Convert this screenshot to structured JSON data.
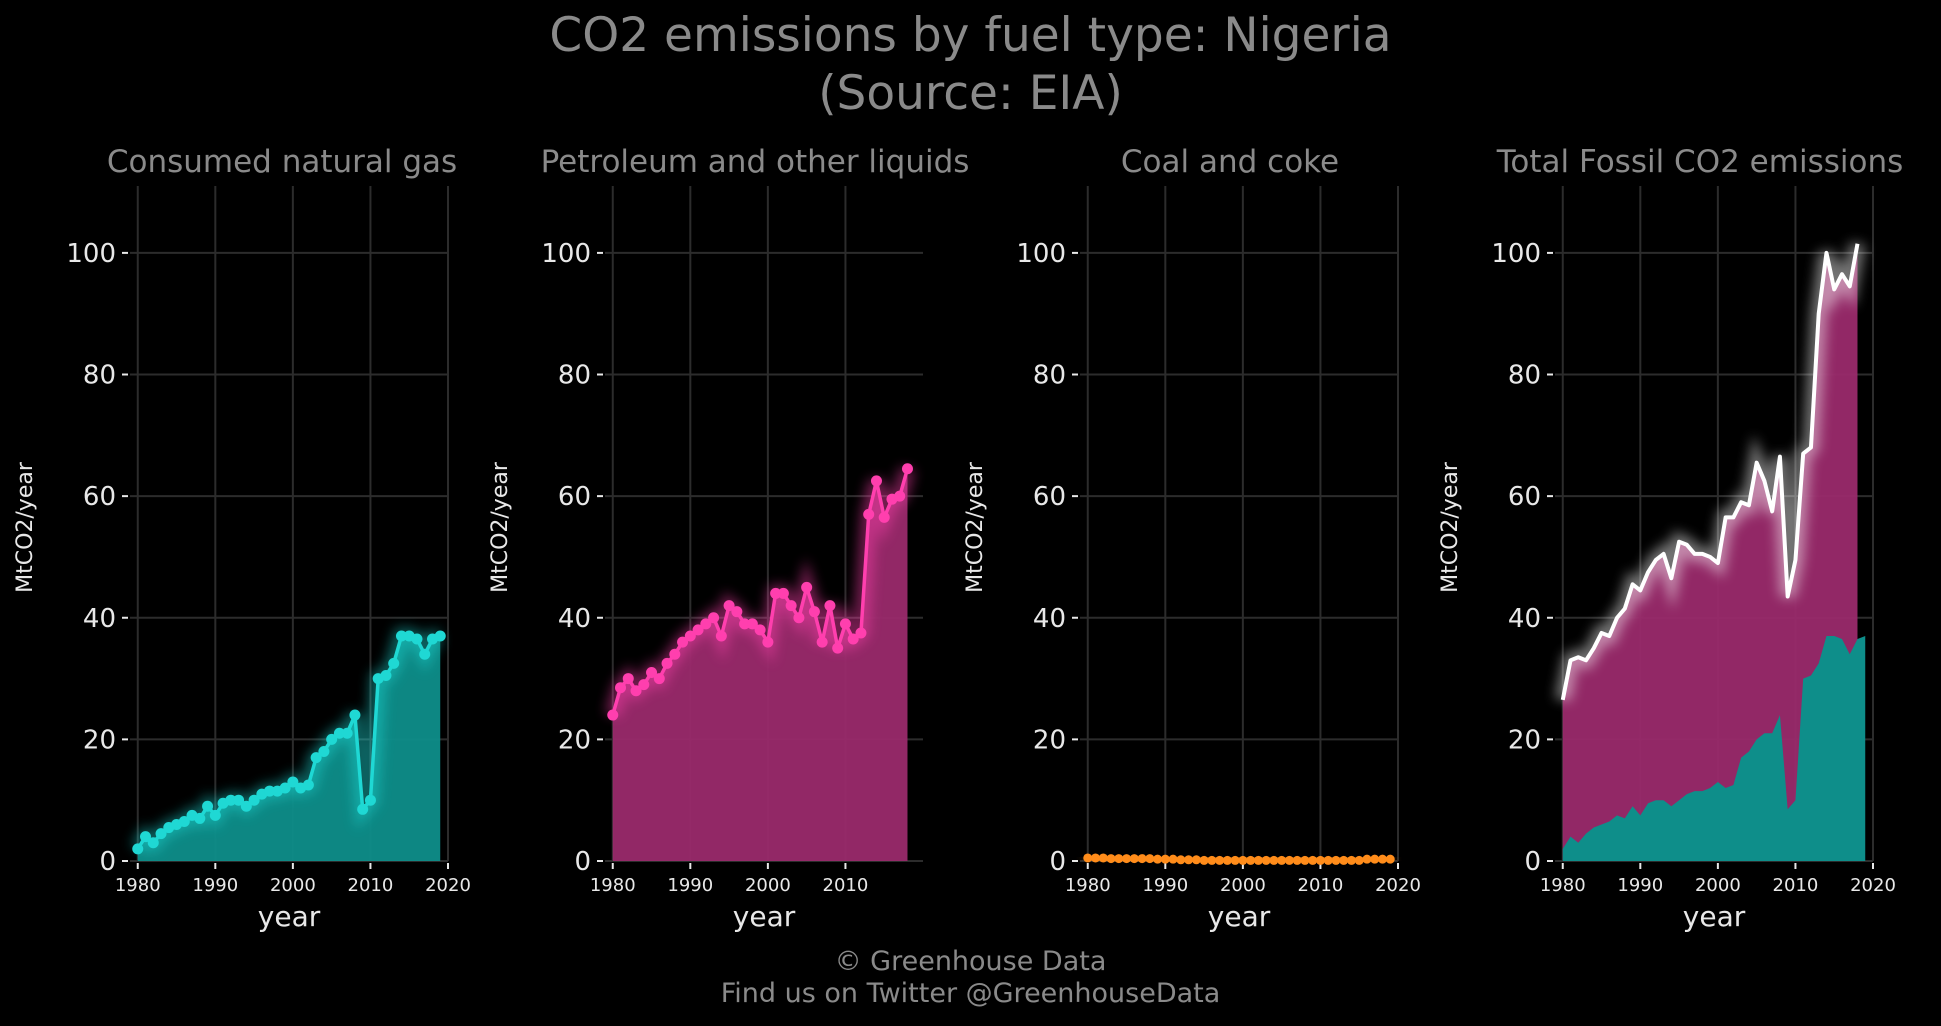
{
  "title_line1": "CO2 emissions by fuel type: Nigeria",
  "title_line2": "(Source: EIA)",
  "footer_line1": "© Greenhouse Data",
  "footer_line2": "Find us on Twitter @GreenhouseData",
  "colors": {
    "background": "#000000",
    "grid": "#2c2c2c",
    "gas_line": "#1fd8d4",
    "gas_fill": "#0e8e8a",
    "petroleum_line": "#ff3fae",
    "petroleum_fill": "#9a2a6c",
    "coal_line": "#ff8c1a",
    "total_line": "#ffffff"
  },
  "chart_data": [
    {
      "type": "area",
      "title": "Consumed natural gas",
      "xlabel": "year",
      "ylabel": "MtCO2/year",
      "xlim": [
        1979,
        2020
      ],
      "ylim": [
        0,
        111
      ],
      "xticks": [
        1980,
        1990,
        2000,
        2010,
        2020
      ],
      "yticks": [
        0,
        20,
        40,
        60,
        80,
        100
      ],
      "grid": true,
      "series": [
        {
          "x": [
            1980,
            1981,
            1982,
            1983,
            1984,
            1985,
            1986,
            1987,
            1988,
            1989,
            1990,
            1991,
            1992,
            1993,
            1994,
            1995,
            1996,
            1997,
            1998,
            1999,
            2000,
            2001,
            2002,
            2003,
            2004,
            2005,
            2006,
            2007,
            2008,
            2009,
            2010,
            2011,
            2012,
            2013,
            2014,
            2015,
            2016,
            2017,
            2018,
            2019
          ],
          "values": [
            2,
            4,
            3,
            4.5,
            5.5,
            6,
            6.5,
            7.5,
            7,
            9,
            7.5,
            9.5,
            10,
            10,
            9,
            10,
            11,
            11.5,
            11.5,
            12,
            13,
            12,
            12.5,
            17,
            18,
            20,
            21,
            21,
            24,
            8.5,
            10,
            30,
            30.5,
            32.5,
            37,
            37,
            36.5,
            34,
            36.5,
            37
          ]
        }
      ]
    },
    {
      "type": "area",
      "title": "Petroleum and other liquids",
      "xlabel": "year",
      "ylabel": "MtCO2/year",
      "xlim": [
        1979,
        2020
      ],
      "ylim": [
        0,
        111
      ],
      "xticks": [
        1980,
        1990,
        2000,
        2010
      ],
      "yticks": [
        0,
        20,
        40,
        60,
        80,
        100
      ],
      "grid": true,
      "series": [
        {
          "x": [
            1980,
            1981,
            1982,
            1983,
            1984,
            1985,
            1986,
            1987,
            1988,
            1989,
            1990,
            1991,
            1992,
            1993,
            1994,
            1995,
            1996,
            1997,
            1998,
            1999,
            2000,
            2001,
            2002,
            2003,
            2004,
            2005,
            2006,
            2007,
            2008,
            2009,
            2010,
            2011,
            2012,
            2013,
            2014,
            2015,
            2016,
            2017,
            2018
          ],
          "values": [
            24,
            28.5,
            30,
            28,
            29,
            31,
            30,
            32.5,
            34,
            36,
            37,
            38,
            39,
            40,
            37,
            42,
            41,
            39,
            39,
            38,
            36,
            44,
            44,
            42,
            40,
            45,
            41,
            36,
            42,
            35,
            39,
            36.5,
            37.5,
            57,
            62.5,
            56.5,
            59.5,
            60,
            64.5
          ]
        }
      ]
    },
    {
      "type": "area",
      "title": "Coal and coke",
      "xlabel": "year",
      "ylabel": "MtCO2/year",
      "xlim": [
        1979,
        2020
      ],
      "ylim": [
        0,
        111
      ],
      "xticks": [
        1980,
        1990,
        2000,
        2010,
        2020
      ],
      "yticks": [
        0,
        20,
        40,
        60,
        80,
        100
      ],
      "grid": true,
      "series": [
        {
          "x": [
            1980,
            1981,
            1982,
            1983,
            1984,
            1985,
            1986,
            1987,
            1988,
            1989,
            1990,
            1991,
            1992,
            1993,
            1994,
            1995,
            1996,
            1997,
            1998,
            1999,
            2000,
            2001,
            2002,
            2003,
            2004,
            2005,
            2006,
            2007,
            2008,
            2009,
            2010,
            2011,
            2012,
            2013,
            2014,
            2015,
            2016,
            2017,
            2018,
            2019
          ],
          "values": [
            0.5,
            0.5,
            0.5,
            0.4,
            0.4,
            0.4,
            0.4,
            0.4,
            0.4,
            0.3,
            0.3,
            0.3,
            0.2,
            0.2,
            0.2,
            0.1,
            0.1,
            0.1,
            0.1,
            0.1,
            0.1,
            0.1,
            0.1,
            0.1,
            0.1,
            0.1,
            0.1,
            0.1,
            0.1,
            0.1,
            0.1,
            0.1,
            0.1,
            0.1,
            0.1,
            0.1,
            0.3,
            0.3,
            0.3,
            0.3
          ]
        }
      ]
    },
    {
      "type": "area",
      "title": "Total Fossil CO2 emissions",
      "xlabel": "year",
      "ylabel": "MtCO2/year",
      "xlim": [
        1979,
        2020
      ],
      "ylim": [
        0,
        111
      ],
      "xticks": [
        1980,
        1990,
        2000,
        2010,
        2020
      ],
      "yticks": [
        0,
        20,
        40,
        60,
        80,
        100
      ],
      "grid": true,
      "series": [
        {
          "x": [
            1980,
            1981,
            1982,
            1983,
            1984,
            1985,
            1986,
            1987,
            1988,
            1989,
            1990,
            1991,
            1992,
            1993,
            1994,
            1995,
            1996,
            1997,
            1998,
            1999,
            2000,
            2001,
            2002,
            2003,
            2004,
            2005,
            2006,
            2007,
            2008,
            2009,
            2010,
            2011,
            2012,
            2013,
            2014,
            2015,
            2016,
            2017,
            2018
          ],
          "values": [
            26.5,
            33,
            33.5,
            33,
            35,
            37.5,
            37,
            40,
            41.5,
            45.5,
            44.5,
            47.5,
            49.5,
            50.5,
            46.5,
            52.5,
            52,
            50.5,
            50.5,
            50,
            49,
            56.5,
            56.5,
            59,
            58.5,
            65.5,
            62.5,
            57.5,
            66.5,
            43.5,
            49.5,
            67,
            68,
            90,
            100,
            94,
            96.5,
            94.5,
            101.5
          ]
        }
      ]
    }
  ]
}
